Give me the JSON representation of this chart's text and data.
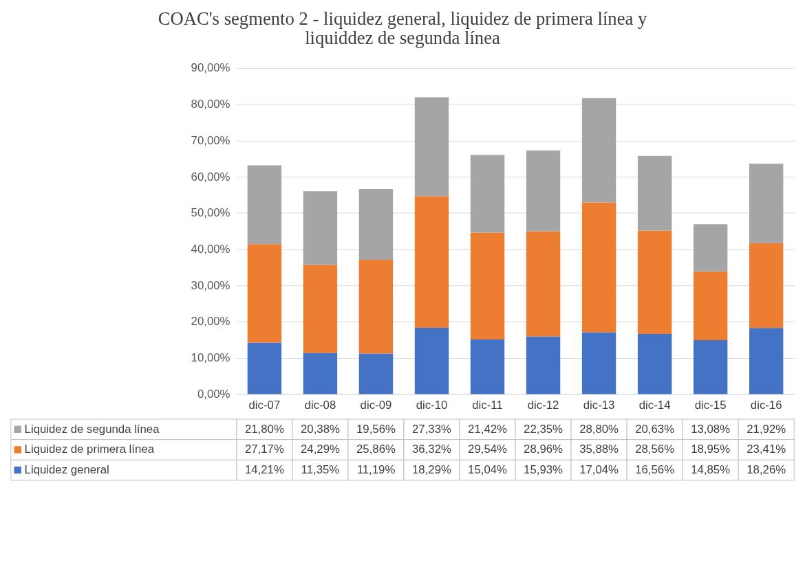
{
  "chart_data": {
    "type": "bar",
    "stacked": true,
    "title": "COAC's segmento 2 - liquidez general, liquidez de primera línea y liquiddez de segunda línea",
    "categories": [
      "dic-07",
      "dic-08",
      "dic-09",
      "dic-10",
      "dic-11",
      "dic-12",
      "dic-13",
      "dic-14",
      "dic-15",
      "dic-16"
    ],
    "series": [
      {
        "name": "Liquidez general",
        "color": "#4472c4",
        "values": [
          14.21,
          11.35,
          11.19,
          18.29,
          15.04,
          15.93,
          17.04,
          16.56,
          14.85,
          18.26
        ],
        "value_labels": [
          "14,21%",
          "11,35%",
          "11,19%",
          "18,29%",
          "15,04%",
          "15,93%",
          "17,04%",
          "16,56%",
          "14,85%",
          "18,26%"
        ]
      },
      {
        "name": "Liquidez de primera línea",
        "color": "#ed7d31",
        "values": [
          27.17,
          24.29,
          25.86,
          36.32,
          29.54,
          28.96,
          35.88,
          28.56,
          18.95,
          23.41
        ],
        "value_labels": [
          "27,17%",
          "24,29%",
          "25,86%",
          "36,32%",
          "29,54%",
          "28,96%",
          "35,88%",
          "28,56%",
          "18,95%",
          "23,41%"
        ]
      },
      {
        "name": "Liquidez de segunda línea",
        "color": "#a5a5a5",
        "values": [
          21.8,
          20.38,
          19.56,
          27.33,
          21.42,
          22.35,
          28.8,
          20.63,
          13.08,
          21.92
        ],
        "value_labels": [
          "21,80%",
          "20,38%",
          "19,56%",
          "27,33%",
          "21,42%",
          "22,35%",
          "28,80%",
          "20,63%",
          "13,08%",
          "21,92%"
        ]
      }
    ],
    "ylim": [
      0,
      90
    ],
    "yticks": [
      {
        "value": 0,
        "label": "0,00%"
      },
      {
        "value": 10,
        "label": "10,00%"
      },
      {
        "value": 20,
        "label": "20,00%"
      },
      {
        "value": 30,
        "label": "30,00%"
      },
      {
        "value": 40,
        "label": "40,00%"
      },
      {
        "value": 50,
        "label": "50,00%"
      },
      {
        "value": 60,
        "label": "60,00%"
      },
      {
        "value": 70,
        "label": "70,00%"
      },
      {
        "value": 80,
        "label": "80,00%"
      },
      {
        "value": 90,
        "label": "90,00%"
      }
    ],
    "grid": "y",
    "legend": "bottom"
  }
}
